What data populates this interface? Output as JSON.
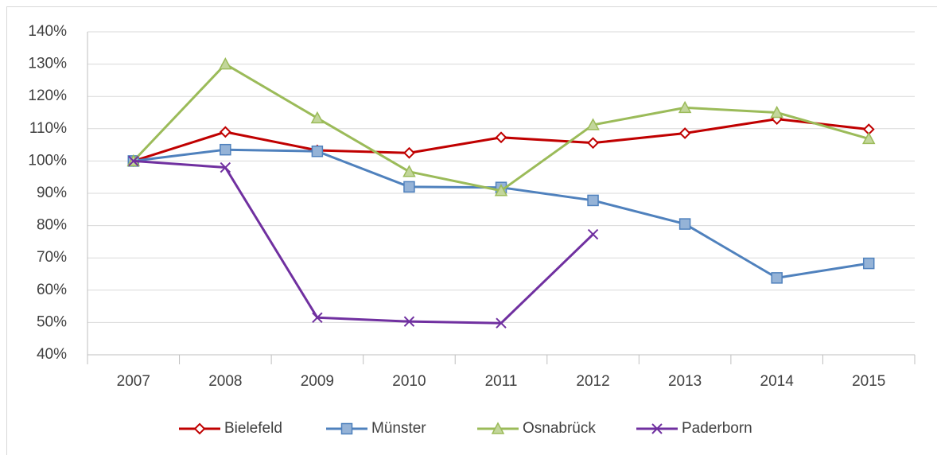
{
  "chart_data": {
    "type": "line",
    "categories": [
      "2007",
      "2008",
      "2009",
      "2010",
      "2011",
      "2012",
      "2013",
      "2014",
      "2015"
    ],
    "series": [
      {
        "name": "Bielefeld",
        "color": "#c00000",
        "marker": "diamond",
        "values": [
          100,
          109,
          103.3,
          102.5,
          107.3,
          105.6,
          108.6,
          113,
          109.8
        ]
      },
      {
        "name": "Münster",
        "color": "#4f81bd",
        "marker": "square",
        "values": [
          100,
          103.5,
          103,
          92,
          91.8,
          87.8,
          80.5,
          63.8,
          68.3
        ]
      },
      {
        "name": "Osnabrück",
        "color": "#9bbb59",
        "marker": "triangle",
        "values": [
          100,
          130,
          113.3,
          96.7,
          90.8,
          111.2,
          116.5,
          115,
          106.9
        ]
      },
      {
        "name": "Paderborn",
        "color": "#7030a0",
        "marker": "x",
        "values": [
          100,
          98,
          51.5,
          50.3,
          49.8,
          77.3,
          null,
          null,
          null
        ]
      }
    ],
    "ylim": [
      40,
      140
    ],
    "yticks": [
      {
        "value": 40,
        "label": "40%"
      },
      {
        "value": 50,
        "label": "50%"
      },
      {
        "value": 60,
        "label": "60%"
      },
      {
        "value": 70,
        "label": "70%"
      },
      {
        "value": 80,
        "label": "80%"
      },
      {
        "value": 90,
        "label": "90%"
      },
      {
        "value": 100,
        "label": "100%"
      },
      {
        "value": 110,
        "label": "110%"
      },
      {
        "value": 120,
        "label": "120%"
      },
      {
        "value": 130,
        "label": "130%"
      },
      {
        "value": 140,
        "label": "140%"
      }
    ],
    "grid": true,
    "legend": "bottom"
  }
}
